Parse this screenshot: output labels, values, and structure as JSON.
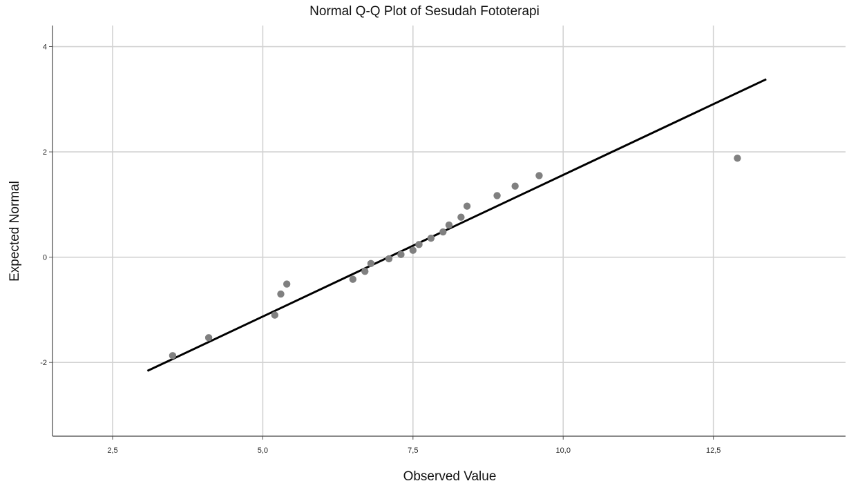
{
  "chart_data": {
    "type": "scatter",
    "title": "Normal Q-Q Plot of Sesudah Fototerapi",
    "xlabel": "Observed Value",
    "ylabel": "Expected Normal",
    "xlim": [
      1.5,
      14.7
    ],
    "ylim": [
      -3.4,
      4.4
    ],
    "x_ticks": [
      2.5,
      5.0,
      7.5,
      10.0,
      12.5
    ],
    "x_tick_labels": [
      "2,5",
      "5,0",
      "7,5",
      "10,0",
      "12,5"
    ],
    "y_ticks": [
      -2,
      0,
      2,
      4
    ],
    "y_tick_labels": [
      "-2",
      "0",
      "2",
      "4"
    ],
    "grid": true,
    "series": [
      {
        "kind": "points",
        "x": [
          3.5,
          4.1,
          5.2,
          5.3,
          5.4,
          6.5,
          6.7,
          6.8,
          7.1,
          7.3,
          7.5,
          7.6,
          7.8,
          8.0,
          8.1,
          8.3,
          8.4,
          8.9,
          9.2,
          9.6,
          12.9
        ],
        "y": [
          -1.87,
          -1.53,
          -1.1,
          -0.7,
          -0.51,
          -0.42,
          -0.27,
          -0.12,
          -0.03,
          0.05,
          0.13,
          0.24,
          0.36,
          0.48,
          0.61,
          0.76,
          0.97,
          1.17,
          1.35,
          1.55,
          1.88
        ],
        "color": "#808080"
      },
      {
        "kind": "line",
        "x": [
          3.08,
          13.38
        ],
        "y": [
          -2.16,
          3.38
        ],
        "color": "#000000"
      }
    ]
  }
}
